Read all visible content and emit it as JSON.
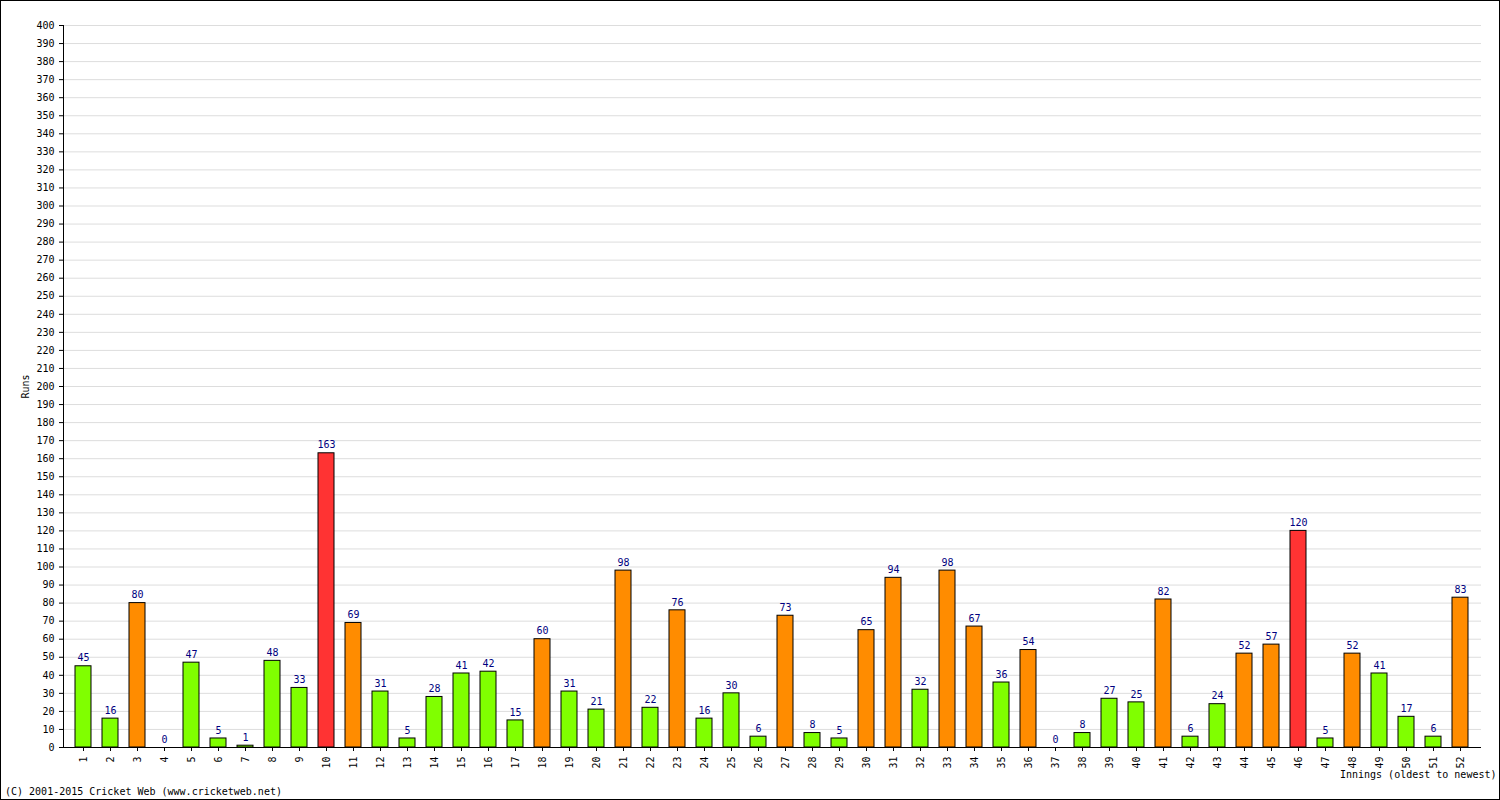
{
  "chart_data": {
    "type": "bar",
    "x_label": "Innings (oldest to newest)",
    "y_label": "Runs",
    "caption": "(C) 2001-2015 Cricket Web (www.cricketweb.net)",
    "categories": [
      "1",
      "2",
      "3",
      "4",
      "5",
      "6",
      "7",
      "8",
      "9",
      "10",
      "11",
      "12",
      "13",
      "14",
      "15",
      "16",
      "17",
      "18",
      "19",
      "20",
      "21",
      "22",
      "23",
      "24",
      "25",
      "26",
      "27",
      "28",
      "29",
      "30",
      "31",
      "32",
      "33",
      "34",
      "35",
      "36",
      "37",
      "38",
      "39",
      "40",
      "41",
      "42",
      "43",
      "44",
      "45",
      "46",
      "47",
      "48",
      "49",
      "50",
      "51",
      "52"
    ],
    "values": [
      45,
      16,
      80,
      0,
      47,
      5,
      1,
      48,
      33,
      163,
      69,
      31,
      5,
      28,
      41,
      42,
      15,
      60,
      31,
      21,
      98,
      22,
      76,
      16,
      30,
      6,
      73,
      8,
      5,
      65,
      94,
      32,
      98,
      67,
      36,
      54,
      0,
      8,
      27,
      25,
      82,
      6,
      24,
      52,
      57,
      120,
      5,
      52,
      41,
      17,
      6,
      83
    ],
    "colors": [
      "#80ff00",
      "#80ff00",
      "#ff8c00",
      "#80ff00",
      "#80ff00",
      "#80ff00",
      "#80ff00",
      "#80ff00",
      "#80ff00",
      "#ff3333",
      "#ff8c00",
      "#80ff00",
      "#80ff00",
      "#80ff00",
      "#80ff00",
      "#80ff00",
      "#80ff00",
      "#ff8c00",
      "#80ff00",
      "#80ff00",
      "#ff8c00",
      "#80ff00",
      "#ff8c00",
      "#80ff00",
      "#80ff00",
      "#80ff00",
      "#ff8c00",
      "#80ff00",
      "#80ff00",
      "#ff8c00",
      "#ff8c00",
      "#80ff00",
      "#ff8c00",
      "#ff8c00",
      "#80ff00",
      "#ff8c00",
      "#80ff00",
      "#80ff00",
      "#80ff00",
      "#80ff00",
      "#ff8c00",
      "#80ff00",
      "#80ff00",
      "#ff8c00",
      "#ff8c00",
      "#ff3333",
      "#80ff00",
      "#ff8c00",
      "#80ff00",
      "#80ff00",
      "#80ff00",
      "#ff8c00"
    ],
    "ylim": [
      0,
      400
    ],
    "yticks": [
      0,
      10,
      20,
      30,
      40,
      50,
      60,
      70,
      80,
      90,
      100,
      110,
      120,
      130,
      140,
      150,
      160,
      170,
      180,
      190,
      200,
      210,
      220,
      230,
      240,
      250,
      260,
      270,
      280,
      290,
      300,
      310,
      320,
      330,
      340,
      350,
      360,
      370,
      380,
      390,
      400
    ],
    "grid": true,
    "data_labels": true
  }
}
